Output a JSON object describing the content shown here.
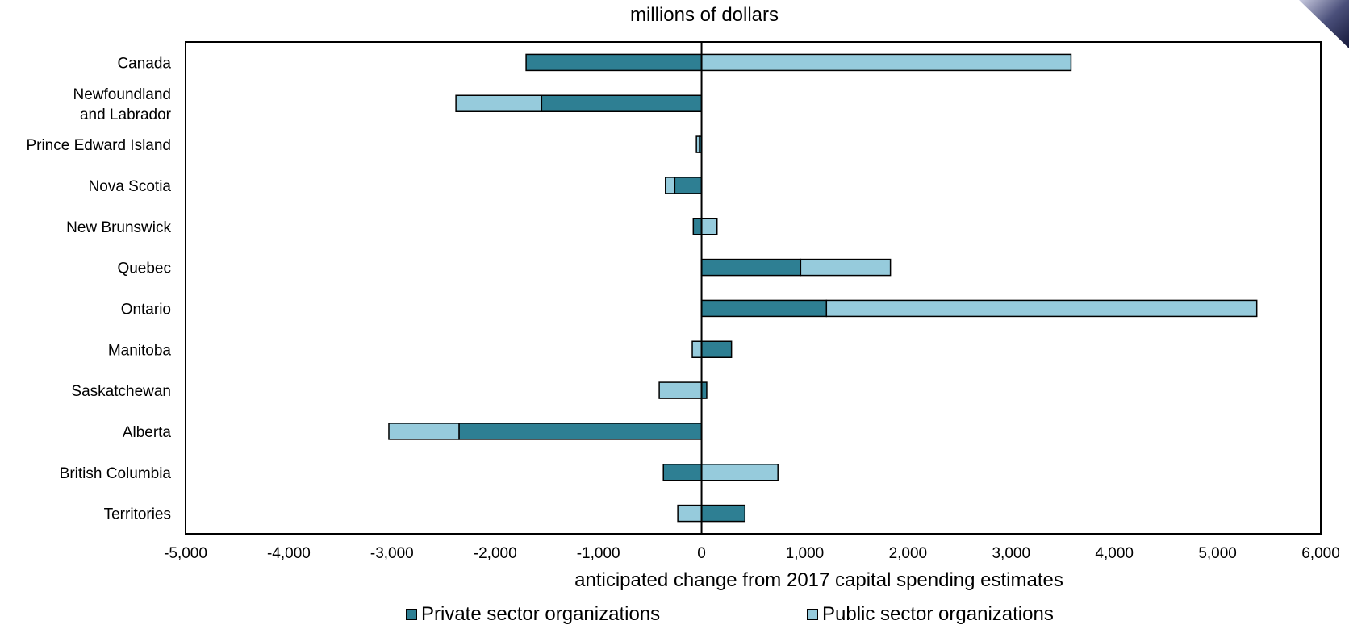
{
  "chart_data": {
    "type": "bar",
    "orientation": "horizontal",
    "stacked": true,
    "title": "millions of dollars",
    "xlabel": "anticipated change from 2017 capital spending estimates",
    "ylabel": "",
    "xlim": [
      -5000,
      6000
    ],
    "xticks": [
      -5000,
      -4000,
      -3000,
      -2000,
      -1000,
      0,
      1000,
      2000,
      3000,
      4000,
      5000,
      6000
    ],
    "xtick_labels": [
      "-5,000",
      "-4,000",
      "-3,000",
      "-2,000",
      "-1,000",
      "0",
      "1,000",
      "2,000",
      "3,000",
      "4,000",
      "5,000",
      "6,000"
    ],
    "categories": [
      [
        "Canada"
      ],
      [
        "Newfoundland",
        "and Labrador"
      ],
      [
        "Prince Edward Island"
      ],
      [
        "Nova Scotia"
      ],
      [
        "New Brunswick"
      ],
      [
        "Quebec"
      ],
      [
        "Ontario"
      ],
      [
        "Manitoba"
      ],
      [
        "Saskatchewan"
      ],
      [
        "Alberta"
      ],
      [
        "British Columbia"
      ],
      [
        "Territories"
      ]
    ],
    "series": [
      {
        "name": "Private sector organizations",
        "color": "#2e7f93",
        "values": [
          -1700,
          -1550,
          -20,
          -260,
          -80,
          960,
          1210,
          290,
          50,
          -2350,
          -370,
          420
        ]
      },
      {
        "name": "Public sector organizations",
        "color": "#96cbdc",
        "values": [
          3580,
          -830,
          -30,
          -90,
          150,
          870,
          4170,
          -90,
          -410,
          -680,
          740,
          -230
        ]
      }
    ],
    "grid": false,
    "legend_position": "bottom"
  }
}
